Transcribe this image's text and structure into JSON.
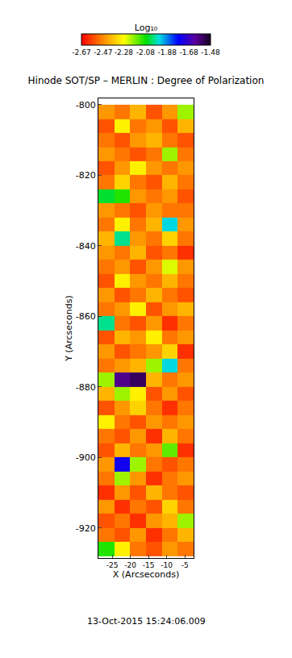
{
  "chart_data": {
    "type": "heatmap",
    "title": "Hinode SOT/SP – MERLIN : Degree of Polarization",
    "x_label": "X (Arcseconds)",
    "y_label": "Y (Arcseconds)",
    "annotations": [
      "13-Oct-2015 15:24:06.009"
    ],
    "x": [
      -26.6,
      -22.2,
      -17.9,
      -13.5,
      -9.1,
      -4.8
    ],
    "y": [
      -926,
      -922,
      -918,
      -914,
      -910,
      -906,
      -902,
      -898,
      -894,
      -890,
      -886,
      -882,
      -878,
      -874,
      -870,
      -866,
      -862,
      -858,
      -854,
      -850,
      -846,
      -842,
      -838,
      -834,
      -830,
      -826,
      -822,
      -818,
      -814,
      -810,
      -806,
      -802
    ],
    "z": [
      [
        -2.1,
        -2.3,
        -2.5,
        -2.55,
        -2.45,
        -2.5
      ],
      [
        -2.5,
        -2.55,
        -2.45,
        -2.6,
        -2.5,
        -2.4
      ],
      [
        -2.55,
        -2.5,
        -2.6,
        -2.45,
        -2.4,
        -2.2
      ],
      [
        -2.45,
        -2.6,
        -2.5,
        -2.55,
        -2.35,
        -2.5
      ],
      [
        -2.6,
        -2.45,
        -2.55,
        -2.4,
        -2.5,
        -2.55
      ],
      [
        -2.5,
        -2.2,
        -2.45,
        -2.6,
        -2.5,
        -2.45
      ],
      [
        -2.45,
        -1.75,
        -2.2,
        -2.5,
        -2.55,
        -2.5
      ],
      [
        -2.55,
        -2.4,
        -2.5,
        -2.45,
        -2.15,
        -2.6
      ],
      [
        -2.5,
        -2.55,
        -2.45,
        -2.6,
        -2.4,
        -2.5
      ],
      [
        -2.3,
        -2.5,
        -2.55,
        -2.45,
        -2.5,
        -2.45
      ],
      [
        -2.55,
        -2.45,
        -2.35,
        -2.5,
        -2.6,
        -2.5
      ],
      [
        -2.4,
        -2.2,
        -2.3,
        -2.55,
        -2.45,
        -2.55
      ],
      [
        -2.2,
        -1.6,
        -1.55,
        -2.4,
        -2.5,
        -2.45
      ],
      [
        -2.5,
        -2.45,
        -2.4,
        -2.2,
        -1.95,
        -2.5
      ],
      [
        -2.45,
        -2.55,
        -2.5,
        -2.45,
        -2.35,
        -2.6
      ],
      [
        -2.55,
        -2.4,
        -2.45,
        -2.3,
        -2.5,
        -2.45
      ],
      [
        -2.0,
        -2.5,
        -2.55,
        -2.45,
        -2.6,
        -2.5
      ],
      [
        -2.5,
        -2.45,
        -2.3,
        -2.55,
        -2.45,
        -2.4
      ],
      [
        -2.45,
        -2.55,
        -2.5,
        -2.4,
        -2.5,
        -2.55
      ],
      [
        -2.55,
        -2.3,
        -2.45,
        -2.5,
        -2.4,
        -2.5
      ],
      [
        -2.5,
        -2.45,
        -2.55,
        -2.45,
        -2.25,
        -2.45
      ],
      [
        -2.45,
        -2.5,
        -2.4,
        -2.55,
        -2.5,
        -2.6
      ],
      [
        -2.4,
        -2.0,
        -2.45,
        -2.5,
        -2.35,
        -2.5
      ],
      [
        -2.5,
        -2.3,
        -2.5,
        -2.4,
        -1.95,
        -2.45
      ],
      [
        -2.45,
        -2.5,
        -2.55,
        -2.45,
        -2.5,
        -2.5
      ],
      [
        -2.05,
        -2.1,
        -2.45,
        -2.5,
        -2.45,
        -2.55
      ],
      [
        -2.5,
        -2.35,
        -2.5,
        -2.55,
        -2.4,
        -2.5
      ],
      [
        -2.55,
        -2.45,
        -2.3,
        -2.45,
        -2.5,
        -2.45
      ],
      [
        -2.45,
        -2.5,
        -2.55,
        -2.5,
        -2.2,
        -2.5
      ],
      [
        -2.5,
        -2.55,
        -2.45,
        -2.4,
        -2.5,
        -2.55
      ],
      [
        -2.55,
        -2.3,
        -2.5,
        -2.45,
        -2.55,
        -2.4
      ],
      [
        -2.45,
        -2.5,
        -2.4,
        -2.55,
        -2.45,
        -2.2
      ]
    ],
    "xlim": [
      -28.8,
      -2.6
    ],
    "xticks": [
      -25,
      -20,
      -15,
      -10,
      -5
    ],
    "ylim": [
      -928.5,
      -798.2
    ],
    "yticks": [
      -920,
      -900,
      -880,
      -860,
      -840,
      -820,
      -800
    ],
    "colorbar": {
      "title": "Log₁₀",
      "range": [
        -2.67,
        -1.48
      ],
      "ticks": [
        -2.67,
        -2.47,
        -2.28,
        -2.08,
        -1.88,
        -1.68,
        -1.48
      ]
    },
    "grid": false
  }
}
